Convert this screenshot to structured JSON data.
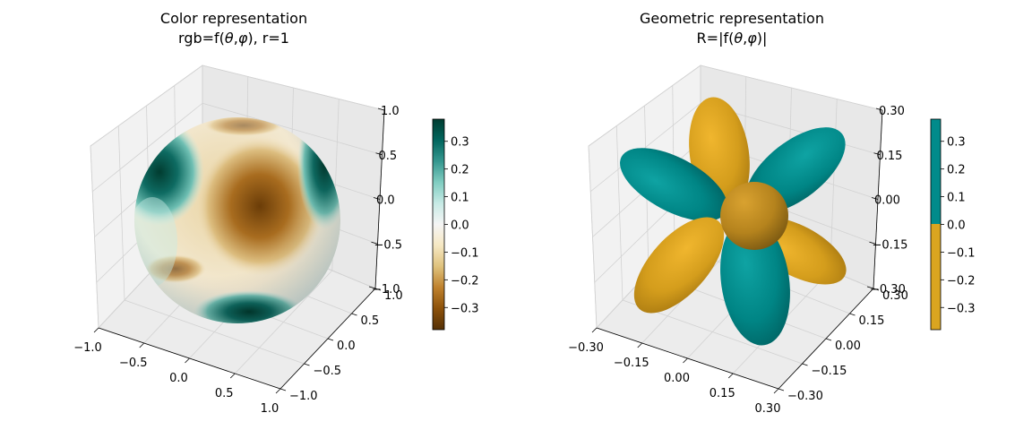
{
  "chart_data": [
    {
      "type": "surface3d",
      "title_line1": "Color representation",
      "title_line2_parts": [
        "rgb=f(",
        "θ",
        ",",
        "φ",
        "), r=1"
      ],
      "surface": "unit sphere colored by real spherical harmonic value f(θ,φ)",
      "radius": 1,
      "axes": {
        "x": {
          "ticks": [
            -1.0,
            -0.5,
            0.0,
            0.5,
            1.0
          ],
          "tick_labels": [
            "−1.0",
            "−0.5",
            "0.0",
            "0.5",
            "1.0"
          ],
          "lim": [
            -1.0,
            1.0
          ]
        },
        "y": {
          "ticks": [
            -1.0,
            -0.5,
            0.0,
            0.5,
            1.0
          ],
          "tick_labels": [
            "−1.0",
            "−0.5",
            "0.0",
            "0.5",
            "1.0"
          ],
          "lim": [
            -1.0,
            1.0
          ]
        },
        "z": {
          "ticks": [
            -1.0,
            -0.5,
            0.0,
            0.5,
            1.0
          ],
          "tick_labels": [
            "−1.0",
            "−0.5",
            "0.0",
            "0.5",
            "1.0"
          ],
          "lim": [
            -1.0,
            1.0
          ]
        }
      },
      "grid": true,
      "colorbar": {
        "colormap": "BrBG",
        "range": [
          -0.38,
          0.38
        ],
        "ticks": [
          0.3,
          0.2,
          0.1,
          0.0,
          -0.1,
          -0.2,
          -0.3
        ],
        "tick_labels": [
          "0.3",
          "0.2",
          "0.1",
          "0.0",
          "−0.1",
          "−0.2",
          "−0.3"
        ],
        "stops": [
          "#543005",
          "#8c510a",
          "#bf812d",
          "#dfc27d",
          "#f6e8c3",
          "#f5f5f5",
          "#c7eae5",
          "#80cdc1",
          "#35978f",
          "#01665e",
          "#003c30"
        ]
      }
    },
    {
      "type": "surface3d",
      "title_line1": "Geometric representation",
      "title_line2_parts": [
        "R=|f(",
        "θ",
        ",",
        "φ",
        ")|"
      ],
      "surface": "radius equals |f(θ,φ)|, colored by sign",
      "axes": {
        "x": {
          "ticks": [
            -0.3,
            -0.15,
            0.0,
            0.15,
            0.3
          ],
          "tick_labels": [
            "−0.30",
            "−0.15",
            "0.00",
            "0.15",
            "0.30"
          ],
          "lim": [
            -0.3,
            0.3
          ]
        },
        "y": {
          "ticks": [
            -0.3,
            -0.15,
            0.0,
            0.15,
            0.3
          ],
          "tick_labels": [
            "−0.30",
            "−0.15",
            "0.00",
            "0.15",
            "0.30"
          ],
          "lim": [
            -0.3,
            0.3
          ]
        },
        "z": {
          "ticks": [
            -0.3,
            -0.15,
            0.0,
            0.15,
            0.3
          ],
          "tick_labels": [
            "−0.30",
            "−0.15",
            "0.00",
            "0.15",
            "0.30"
          ],
          "lim": [
            -0.3,
            0.3
          ]
        }
      },
      "grid": true,
      "colors": {
        "positive": "#008b8b",
        "negative": "#daa520"
      },
      "colorbar": {
        "range": [
          -0.38,
          0.38
        ],
        "ticks": [
          0.3,
          0.2,
          0.1,
          0.0,
          -0.1,
          -0.2,
          -0.3
        ],
        "tick_labels": [
          "0.3",
          "0.2",
          "0.1",
          "0.0",
          "−0.1",
          "−0.2",
          "−0.3"
        ]
      }
    }
  ]
}
